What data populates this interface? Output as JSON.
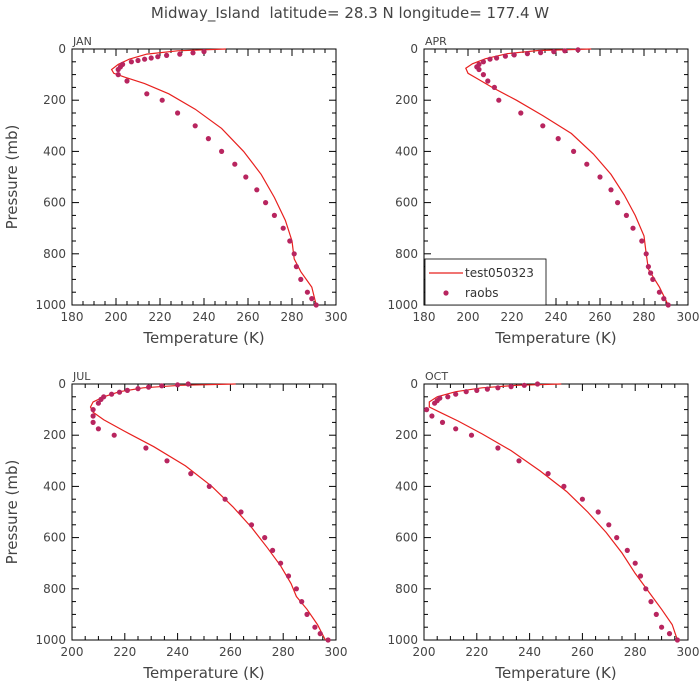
{
  "title": "Midway_Island  latitude= 28.3 N longitude= 177.4 W",
  "legend": {
    "line_label": "test050323",
    "marker_label": "raobs"
  },
  "colors": {
    "model_line": "#e8201e",
    "obs_marker": "#b8255f",
    "text": "#444444"
  },
  "chart_data": [
    {
      "type": "line",
      "panel": "JAN",
      "xlabel": "Temperature (K)",
      "ylabel": "Pressure (mb)",
      "xlim": [
        180,
        300
      ],
      "ylim": [
        0,
        1000
      ],
      "y_inverted": true,
      "xticks": [
        180,
        200,
        220,
        240,
        260,
        280,
        300
      ],
      "yticks": [
        0,
        200,
        400,
        600,
        800,
        1000
      ],
      "series": [
        {
          "name": "test050323",
          "kind": "line",
          "x": [
            250,
            228,
            214,
            206,
            201,
            198,
            199,
            204,
            213,
            224,
            236,
            248,
            258,
            266,
            272,
            277,
            280,
            281,
            284,
            289,
            291
          ],
          "y": [
            0,
            7,
            20,
            40,
            60,
            80,
            95,
            110,
            135,
            175,
            235,
            310,
            400,
            490,
            580,
            670,
            750,
            820,
            870,
            930,
            1000
          ]
        },
        {
          "name": "raobs",
          "kind": "scatter",
          "x": [
            240,
            235,
            229,
            223,
            219,
            216,
            213,
            210,
            207,
            203,
            202,
            201,
            201,
            205,
            214,
            221,
            228,
            236,
            242,
            248,
            254,
            259,
            264,
            268,
            272,
            276,
            279,
            281,
            282,
            284,
            287,
            289,
            291
          ],
          "y": [
            10,
            15,
            20,
            25,
            30,
            35,
            40,
            45,
            50,
            60,
            70,
            80,
            100,
            125,
            175,
            200,
            250,
            300,
            350,
            400,
            450,
            500,
            550,
            600,
            650,
            700,
            750,
            800,
            850,
            900,
            950,
            975,
            1000
          ]
        }
      ]
    },
    {
      "type": "line",
      "panel": "APR",
      "xlabel": "Temperature (K)",
      "ylabel": "",
      "xlim": [
        180,
        300
      ],
      "ylim": [
        0,
        1000
      ],
      "y_inverted": true,
      "xticks": [
        180,
        200,
        220,
        240,
        260,
        280,
        300
      ],
      "yticks": [
        0,
        200,
        400,
        600,
        800,
        1000
      ],
      "series": [
        {
          "name": "test050323",
          "kind": "line",
          "x": [
            256,
            232,
            218,
            208,
            202,
            199,
            200,
            204,
            211,
            222,
            234,
            247,
            257,
            265,
            271,
            276,
            280,
            281,
            282,
            287,
            291
          ],
          "y": [
            0,
            6,
            18,
            38,
            58,
            75,
            95,
            115,
            150,
            200,
            260,
            330,
            410,
            490,
            570,
            650,
            730,
            800,
            860,
            930,
            1000
          ]
        },
        {
          "name": "raobs",
          "kind": "scatter",
          "x": [
            250,
            244,
            239,
            233,
            227,
            221,
            217,
            213,
            210,
            207,
            205,
            204,
            205,
            207,
            209,
            212,
            214,
            224,
            234,
            241,
            248,
            254,
            260,
            265,
            268,
            272,
            275,
            279,
            281,
            282,
            283,
            284,
            287,
            289,
            291
          ],
          "y": [
            3,
            7,
            10,
            14,
            18,
            23,
            28,
            35,
            40,
            50,
            60,
            70,
            80,
            100,
            125,
            150,
            200,
            250,
            300,
            350,
            400,
            450,
            500,
            550,
            600,
            650,
            700,
            750,
            800,
            850,
            875,
            900,
            950,
            975,
            1000
          ]
        }
      ]
    },
    {
      "type": "line",
      "panel": "JUL",
      "xlabel": "Temperature (K)",
      "ylabel": "Pressure (mb)",
      "xlim": [
        200,
        300
      ],
      "ylim": [
        0,
        1000
      ],
      "y_inverted": true,
      "xticks": [
        200,
        220,
        240,
        260,
        280,
        300
      ],
      "yticks": [
        0,
        200,
        400,
        600,
        800,
        1000
      ],
      "series": [
        {
          "name": "test050323",
          "kind": "line",
          "x": [
            262,
            241,
            227,
            218,
            212,
            208,
            207,
            208,
            212,
            220,
            231,
            243,
            253,
            261,
            268,
            274,
            279,
            283,
            285,
            289,
            293,
            296
          ],
          "y": [
            0,
            5,
            15,
            30,
            50,
            70,
            90,
            110,
            140,
            185,
            245,
            320,
            400,
            480,
            560,
            640,
            710,
            780,
            830,
            880,
            940,
            1000
          ]
        },
        {
          "name": "raobs",
          "kind": "scatter",
          "x": [
            244,
            240,
            234,
            229,
            225,
            221,
            218,
            215,
            212,
            211,
            210,
            208,
            208,
            208,
            210,
            216,
            228,
            236,
            245,
            252,
            258,
            264,
            268,
            273,
            276,
            279,
            282,
            285,
            287,
            289,
            292,
            294,
            297
          ],
          "y": [
            0,
            3,
            7,
            12,
            18,
            25,
            32,
            40,
            50,
            60,
            75,
            100,
            125,
            150,
            175,
            200,
            250,
            300,
            350,
            400,
            450,
            500,
            550,
            600,
            650,
            700,
            750,
            800,
            850,
            900,
            950,
            975,
            1000
          ]
        }
      ]
    },
    {
      "type": "line",
      "panel": "OCT",
      "xlabel": "Temperature (K)",
      "ylabel": "",
      "xlim": [
        200,
        300
      ],
      "ylim": [
        0,
        1000
      ],
      "y_inverted": true,
      "xticks": [
        200,
        220,
        240,
        260,
        280,
        300
      ],
      "yticks": [
        0,
        200,
        400,
        600,
        800,
        1000
      ],
      "series": [
        {
          "name": "test050323",
          "kind": "line",
          "x": [
            252,
            235,
            222,
            212,
            205,
            202,
            202,
            206,
            213,
            222,
            233,
            244,
            254,
            262,
            269,
            275,
            280,
            285,
            290,
            294,
            296
          ],
          "y": [
            0,
            5,
            15,
            30,
            50,
            70,
            90,
            110,
            145,
            195,
            260,
            340,
            420,
            500,
            580,
            660,
            740,
            810,
            880,
            940,
            1000
          ]
        },
        {
          "name": "raobs",
          "kind": "scatter",
          "x": [
            243,
            238,
            233,
            228,
            224,
            220,
            216,
            212,
            209,
            206,
            205,
            204,
            201,
            203,
            207,
            212,
            218,
            228,
            236,
            247,
            253,
            260,
            266,
            270,
            273,
            277,
            280,
            282,
            284,
            286,
            288,
            290,
            293,
            296
          ],
          "y": [
            0,
            5,
            10,
            15,
            20,
            25,
            30,
            40,
            50,
            55,
            65,
            75,
            100,
            125,
            150,
            175,
            200,
            250,
            300,
            350,
            400,
            450,
            500,
            550,
            600,
            650,
            700,
            750,
            800,
            850,
            900,
            950,
            975,
            1000
          ]
        }
      ]
    }
  ]
}
